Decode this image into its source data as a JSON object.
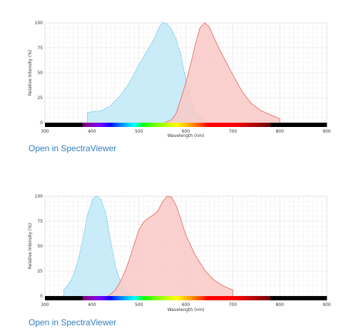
{
  "charts": [
    {
      "link_label": "Open in SpectraViewer",
      "chart_data": {
        "type": "area",
        "xlabel": "Wavelength (nm)",
        "ylabel": "Relative Intensity (%)",
        "xlim": [
          300,
          900
        ],
        "ylim": [
          0,
          100
        ],
        "x_ticks": [
          "300",
          "400",
          "500",
          "600",
          "700",
          "800",
          "900"
        ],
        "y_ticks": [
          "0",
          "25",
          "50",
          "75",
          "100"
        ],
        "grid": true,
        "series": [
          {
            "role": "excitation",
            "style": "dashed",
            "fill": "#bfe9f7",
            "stroke": "#5bbbe0",
            "x": [
              390,
              390,
              400,
              420,
              440,
              460,
              480,
              500,
              520,
              530,
              540,
              545,
              550,
              560,
              570,
              580,
              590,
              600,
              610,
              620,
              630,
              640,
              645
            ],
            "y": [
              0,
              10,
              11,
              12,
              17,
              27,
              40,
              58,
              74,
              82,
              92,
              97,
              100,
              99,
              93,
              83,
              67,
              43,
              24,
              11,
              5,
              2,
              0
            ]
          },
          {
            "role": "emission",
            "style": "solid",
            "fill": "#f9c9c6",
            "stroke": "#ea6e66",
            "x": [
              555,
              570,
              580,
              590,
              600,
              610,
              620,
              630,
              640,
              650,
              660,
              670,
              680,
              700,
              720,
              740,
              760,
              780,
              790,
              800,
              800
            ],
            "y": [
              0,
              3,
              10,
              25,
              40,
              58,
              78,
              95,
              100,
              96,
              85,
              75,
              66,
              48,
              31,
              19,
              12,
              8,
              6,
              4,
              0
            ]
          }
        ]
      }
    },
    {
      "link_label": "Open in SpectraViewer",
      "chart_data": {
        "type": "area",
        "xlabel": "Wavelength (nm)",
        "ylabel": "Relative Intensity (%)",
        "xlim": [
          300,
          900
        ],
        "ylim": [
          0,
          100
        ],
        "x_ticks": [
          "300",
          "400",
          "500",
          "600",
          "700",
          "800",
          "900"
        ],
        "y_ticks": [
          "0",
          "25",
          "50",
          "75",
          "100"
        ],
        "grid": true,
        "series": [
          {
            "role": "excitation",
            "style": "dashed",
            "fill": "#bfe9f7",
            "stroke": "#5bbbe0",
            "x": [
              340,
              340,
              350,
              360,
              370,
              380,
              390,
              400,
              405,
              410,
              415,
              420,
              430,
              440,
              450,
              460,
              470,
              480,
              490
            ],
            "y": [
              0,
              6,
              12,
              20,
              35,
              55,
              80,
              95,
              99,
              100,
              99,
              96,
              82,
              55,
              30,
              15,
              6,
              2,
              0
            ]
          },
          {
            "role": "emission",
            "style": "solid",
            "fill": "#f9c9c6",
            "stroke": "#ea6e66",
            "x": [
              435,
              450,
              460,
              470,
              480,
              490,
              500,
              510,
              520,
              530,
              540,
              550,
              560,
              570,
              580,
              590,
              600,
              620,
              640,
              660,
              680,
              700,
              700
            ],
            "y": [
              0,
              6,
              14,
              24,
              37,
              52,
              66,
              74,
              78,
              81,
              85,
              94,
              100,
              99,
              90,
              76,
              61,
              41,
              26,
              16,
              10,
              6,
              0
            ]
          }
        ]
      }
    }
  ]
}
